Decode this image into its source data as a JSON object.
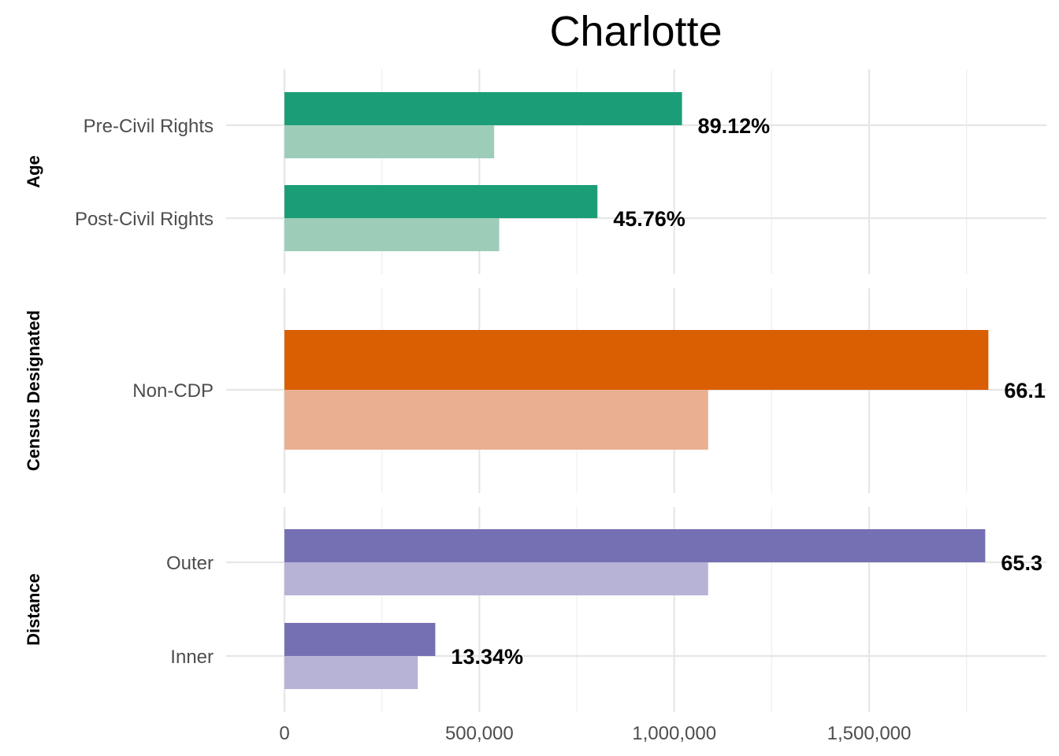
{
  "chart_data": {
    "type": "bar",
    "orientation": "horizontal",
    "title": "Charlotte",
    "xlim": [
      0,
      1950000
    ],
    "x_ticks": [
      {
        "value": 0,
        "label": "0"
      },
      {
        "value": 500000,
        "label": "500,000"
      },
      {
        "value": 1000000,
        "label": "1,000,000"
      },
      {
        "value": 1500000,
        "label": "1,500,000"
      }
    ],
    "grid": true,
    "legend": "none",
    "facets": [
      {
        "name": "Age",
        "color": "#1b9e77",
        "light_color": "#9dcdb9",
        "categories": [
          {
            "label": "Pre-Civil Rights",
            "value": 1020000,
            "baseline": 538000,
            "pct_label": "89.12%"
          },
          {
            "label": "Post-Civil Rights",
            "value": 803000,
            "baseline": 551000,
            "pct_label": "45.76%"
          }
        ]
      },
      {
        "name": "Census Designated",
        "color": "#d95f02",
        "light_color": "#e9af91",
        "categories": [
          {
            "label": "Non-CDP",
            "value": 1806000,
            "baseline": 1087000,
            "pct_label": "66.1"
          }
        ]
      },
      {
        "name": "Distance",
        "color": "#7570b3",
        "light_color": "#b6b3d7",
        "categories": [
          {
            "label": "Outer",
            "value": 1798000,
            "baseline": 1087000,
            "pct_label": "65.3"
          },
          {
            "label": "Inner",
            "value": 387000,
            "baseline": 342000,
            "pct_label": "13.34%"
          }
        ]
      }
    ]
  }
}
